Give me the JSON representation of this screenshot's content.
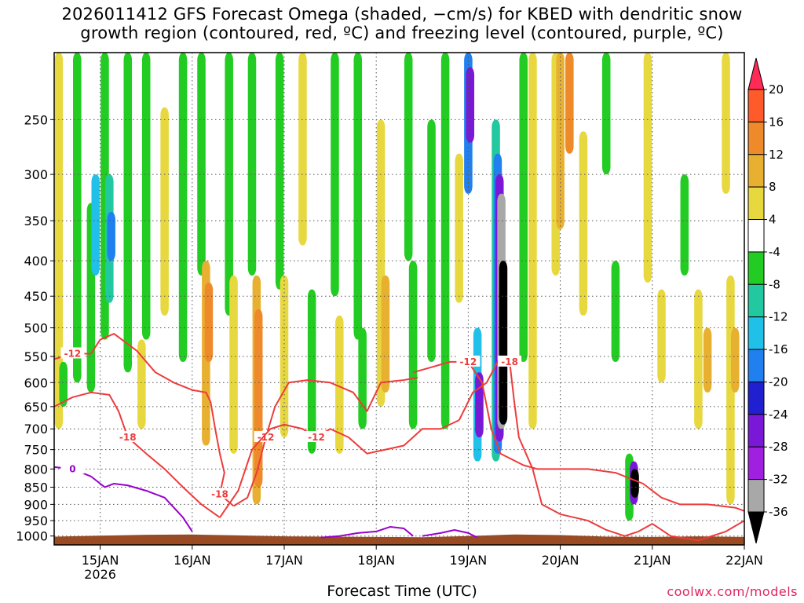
{
  "title": {
    "line1": "2026011412 GFS Forecast Omega (shaded, −cm/s) for KBED with dendritic snow",
    "line2": "growth region (contoured, red, ºC) and freezing level (contoured, purple, ºC)"
  },
  "x_axis_title": "Forecast Time (UTC)",
  "credit": "coolwx.com/models",
  "colors": {
    "terrain": "#9c4a22",
    "dendritic_contour": "#ee3b3b",
    "freezing_contour": "#9a00cc",
    "grid": "#555555"
  },
  "chart_data": {
    "type": "heatmap",
    "title": "2026011412 GFS Forecast Omega (shaded, −cm/s) for KBED with dendritic snow growth region (contoured, red, ºC) and freezing level (contoured, purple, ºC)",
    "xlabel": "Forecast Time (UTC)",
    "ylabel": "",
    "y_scale": "log-pressure",
    "y_inverted": true,
    "x_ticks": [
      {
        "label": "15JAN",
        "sub": "2026",
        "day": 15
      },
      {
        "label": "16JAN",
        "sub": "",
        "day": 16
      },
      {
        "label": "17JAN",
        "sub": "",
        "day": 17
      },
      {
        "label": "18JAN",
        "sub": "",
        "day": 18
      },
      {
        "label": "19JAN",
        "sub": "",
        "day": 19
      },
      {
        "label": "20JAN",
        "sub": "",
        "day": 20
      },
      {
        "label": "21JAN",
        "sub": "",
        "day": 21
      },
      {
        "label": "22JAN",
        "sub": "",
        "day": 22
      }
    ],
    "xlim_days": [
      14.5,
      22
    ],
    "y_ticks": [
      250,
      300,
      350,
      400,
      450,
      500,
      550,
      600,
      650,
      700,
      750,
      800,
      850,
      900,
      950,
      1000
    ],
    "ylim": [
      200,
      1030
    ],
    "colorbar": {
      "levels": [
        "20",
        "16",
        "12",
        "8",
        "4",
        "-4",
        "-8",
        "-12",
        "-16",
        "-20",
        "-24",
        "-28",
        "-32",
        "-36"
      ],
      "colors": [
        "#ff2a55",
        "#ff5a2a",
        "#ee8a2a",
        "#e8b030",
        "#e8d840",
        "#ffffff",
        "#22cc22",
        "#22c8a0",
        "#20c0e8",
        "#2080f0",
        "#2020d0",
        "#7a18d8",
        "#a020e0",
        "#a8a8a8",
        "#000000"
      ]
    },
    "omega_cells": [
      {
        "day": 14.55,
        "p0": 200,
        "p1": 700,
        "c": "#e8d840"
      },
      {
        "day": 14.6,
        "p0": 560,
        "p1": 650,
        "c": "#22cc22"
      },
      {
        "day": 14.75,
        "p0": 200,
        "p1": 600,
        "c": "#22cc22"
      },
      {
        "day": 14.9,
        "p0": 330,
        "p1": 620,
        "c": "#22cc22"
      },
      {
        "day": 14.95,
        "p0": 300,
        "p1": 420,
        "c": "#20c0e8"
      },
      {
        "day": 15.05,
        "p0": 200,
        "p1": 520,
        "c": "#22cc22"
      },
      {
        "day": 15.1,
        "p0": 300,
        "p1": 460,
        "c": "#22c8a0"
      },
      {
        "day": 15.12,
        "p0": 340,
        "p1": 400,
        "c": "#2080f0"
      },
      {
        "day": 15.3,
        "p0": 200,
        "p1": 580,
        "c": "#22cc22"
      },
      {
        "day": 15.5,
        "p0": 200,
        "p1": 520,
        "c": "#22cc22"
      },
      {
        "day": 15.45,
        "p0": 520,
        "p1": 700,
        "c": "#e8d840"
      },
      {
        "day": 15.7,
        "p0": 240,
        "p1": 480,
        "c": "#e8d840"
      },
      {
        "day": 15.9,
        "p0": 200,
        "p1": 560,
        "c": "#22cc22"
      },
      {
        "day": 16.1,
        "p0": 200,
        "p1": 420,
        "c": "#22cc22"
      },
      {
        "day": 16.15,
        "p0": 400,
        "p1": 740,
        "c": "#e8b030"
      },
      {
        "day": 16.18,
        "p0": 430,
        "p1": 560,
        "c": "#ee8a2a"
      },
      {
        "day": 16.4,
        "p0": 200,
        "p1": 480,
        "c": "#22cc22"
      },
      {
        "day": 16.45,
        "p0": 420,
        "p1": 760,
        "c": "#e8d840"
      },
      {
        "day": 16.65,
        "p0": 200,
        "p1": 420,
        "c": "#22cc22"
      },
      {
        "day": 16.7,
        "p0": 420,
        "p1": 900,
        "c": "#e8b030"
      },
      {
        "day": 16.72,
        "p0": 470,
        "p1": 850,
        "c": "#ee8a2a"
      },
      {
        "day": 16.95,
        "p0": 200,
        "p1": 440,
        "c": "#22cc22"
      },
      {
        "day": 17.0,
        "p0": 420,
        "p1": 720,
        "c": "#e8d840"
      },
      {
        "day": 17.2,
        "p0": 200,
        "p1": 380,
        "c": "#e8d840"
      },
      {
        "day": 17.3,
        "p0": 440,
        "p1": 760,
        "c": "#22cc22"
      },
      {
        "day": 17.55,
        "p0": 200,
        "p1": 450,
        "c": "#22cc22"
      },
      {
        "day": 17.6,
        "p0": 480,
        "p1": 760,
        "c": "#e8d840"
      },
      {
        "day": 17.8,
        "p0": 200,
        "p1": 520,
        "c": "#22cc22"
      },
      {
        "day": 17.85,
        "p0": 500,
        "p1": 700,
        "c": "#22cc22"
      },
      {
        "day": 18.05,
        "p0": 250,
        "p1": 650,
        "c": "#e8d840"
      },
      {
        "day": 18.1,
        "p0": 420,
        "p1": 620,
        "c": "#e8b030"
      },
      {
        "day": 18.35,
        "p0": 200,
        "p1": 400,
        "c": "#22cc22"
      },
      {
        "day": 18.4,
        "p0": 400,
        "p1": 700,
        "c": "#22cc22"
      },
      {
        "day": 18.6,
        "p0": 250,
        "p1": 560,
        "c": "#22cc22"
      },
      {
        "day": 18.75,
        "p0": 200,
        "p1": 700,
        "c": "#22cc22"
      },
      {
        "day": 18.9,
        "p0": 280,
        "p1": 460,
        "c": "#e8d840"
      },
      {
        "day": 19.0,
        "p0": 200,
        "p1": 320,
        "c": "#2080f0"
      },
      {
        "day": 19.02,
        "p0": 210,
        "p1": 270,
        "c": "#7a18d8"
      },
      {
        "day": 19.1,
        "p0": 500,
        "p1": 780,
        "c": "#20c0e8"
      },
      {
        "day": 19.12,
        "p0": 580,
        "p1": 720,
        "c": "#7a18d8"
      },
      {
        "day": 19.3,
        "p0": 250,
        "p1": 780,
        "c": "#22c8a0"
      },
      {
        "day": 19.32,
        "p0": 280,
        "p1": 760,
        "c": "#2080f0"
      },
      {
        "day": 19.34,
        "p0": 300,
        "p1": 730,
        "c": "#7a18d8"
      },
      {
        "day": 19.36,
        "p0": 320,
        "p1": 700,
        "c": "#a8a8a8"
      },
      {
        "day": 19.38,
        "p0": 400,
        "p1": 690,
        "c": "#000000"
      },
      {
        "day": 19.6,
        "p0": 200,
        "p1": 560,
        "c": "#22cc22"
      },
      {
        "day": 19.7,
        "p0": 200,
        "p1": 700,
        "c": "#e8d840"
      },
      {
        "day": 19.95,
        "p0": 200,
        "p1": 420,
        "c": "#e8d840"
      },
      {
        "day": 20.0,
        "p0": 200,
        "p1": 360,
        "c": "#e8b030"
      },
      {
        "day": 20.1,
        "p0": 200,
        "p1": 280,
        "c": "#ee8a2a"
      },
      {
        "day": 20.25,
        "p0": 260,
        "p1": 480,
        "c": "#e8d840"
      },
      {
        "day": 20.5,
        "p0": 200,
        "p1": 300,
        "c": "#22cc22"
      },
      {
        "day": 20.6,
        "p0": 400,
        "p1": 560,
        "c": "#22cc22"
      },
      {
        "day": 20.75,
        "p0": 760,
        "p1": 950,
        "c": "#22cc22"
      },
      {
        "day": 20.8,
        "p0": 780,
        "p1": 900,
        "c": "#7a18d8"
      },
      {
        "day": 20.81,
        "p0": 800,
        "p1": 880,
        "c": "#000000"
      },
      {
        "day": 20.95,
        "p0": 200,
        "p1": 430,
        "c": "#e8d840"
      },
      {
        "day": 21.1,
        "p0": 440,
        "p1": 600,
        "c": "#e8d840"
      },
      {
        "day": 21.35,
        "p0": 300,
        "p1": 420,
        "c": "#22cc22"
      },
      {
        "day": 21.5,
        "p0": 440,
        "p1": 700,
        "c": "#e8d840"
      },
      {
        "day": 21.6,
        "p0": 500,
        "p1": 620,
        "c": "#e8b030"
      },
      {
        "day": 21.8,
        "p0": 200,
        "p1": 320,
        "c": "#e8d840"
      },
      {
        "day": 21.85,
        "p0": 420,
        "p1": 900,
        "c": "#e8d840"
      },
      {
        "day": 21.9,
        "p0": 500,
        "p1": 620,
        "c": "#e8b030"
      }
    ],
    "dendritic_lines": [
      {
        "label": "-12",
        "label_at": 1,
        "points": [
          [
            14.5,
            555
          ],
          [
            14.7,
            545
          ],
          [
            14.9,
            545
          ],
          [
            15.0,
            520
          ],
          [
            15.15,
            510
          ],
          [
            15.4,
            540
          ],
          [
            15.6,
            580
          ],
          [
            15.8,
            600
          ],
          [
            16.0,
            615
          ]
        ]
      },
      {
        "label": "-18",
        "label_at": 6,
        "points": [
          [
            16.0,
            615
          ],
          [
            16.15,
            620
          ],
          [
            16.2,
            640
          ],
          [
            16.25,
            700
          ],
          [
            16.3,
            760
          ],
          [
            16.35,
            810
          ],
          [
            16.3,
            870
          ],
          [
            16.45,
            905
          ]
        ]
      },
      {
        "label": "-12",
        "label_at": 3,
        "points": [
          [
            16.45,
            905
          ],
          [
            16.6,
            880
          ],
          [
            16.7,
            810
          ],
          [
            16.8,
            720
          ],
          [
            16.9,
            650
          ],
          [
            17.05,
            600
          ],
          [
            17.25,
            595
          ],
          [
            17.5,
            600
          ],
          [
            17.75,
            620
          ],
          [
            17.9,
            660
          ],
          [
            18.05,
            600
          ],
          [
            18.3,
            595
          ],
          [
            18.45,
            590
          ]
        ]
      },
      {
        "label": "-18",
        "label_at": 5,
        "points": [
          [
            14.5,
            650
          ],
          [
            14.7,
            630
          ],
          [
            14.9,
            620
          ],
          [
            15.1,
            625
          ],
          [
            15.2,
            660
          ],
          [
            15.3,
            720
          ],
          [
            15.5,
            760
          ],
          [
            15.7,
            800
          ],
          [
            15.9,
            850
          ],
          [
            16.1,
            900
          ],
          [
            16.3,
            940
          ]
        ]
      },
      {
        "label": "-12",
        "label_at": 6,
        "points": [
          [
            16.3,
            940
          ],
          [
            16.5,
            860
          ],
          [
            16.65,
            750
          ],
          [
            16.85,
            700
          ],
          [
            17.0,
            690
          ],
          [
            17.2,
            700
          ],
          [
            17.35,
            720
          ],
          [
            17.5,
            700
          ],
          [
            17.7,
            720
          ],
          [
            17.9,
            760
          ],
          [
            18.1,
            750
          ],
          [
            18.3,
            740
          ],
          [
            18.5,
            700
          ],
          [
            18.7,
            700
          ],
          [
            18.9,
            680
          ]
        ]
      },
      {
        "label": "-18",
        "label_at": 4,
        "points": [
          [
            18.9,
            680
          ],
          [
            19.05,
            620
          ],
          [
            19.2,
            600
          ],
          [
            19.35,
            550
          ],
          [
            19.45,
            560
          ],
          [
            19.5,
            640
          ],
          [
            19.55,
            720
          ],
          [
            19.7,
            800
          ],
          [
            19.8,
            900
          ],
          [
            20.0,
            930
          ],
          [
            20.3,
            950
          ],
          [
            20.5,
            980
          ],
          [
            20.7,
            1000
          ],
          [
            20.85,
            985
          ],
          [
            21.0,
            960
          ],
          [
            21.2,
            1000
          ],
          [
            21.5,
            1015
          ],
          [
            21.8,
            985
          ],
          [
            22.0,
            950
          ]
        ]
      },
      {
        "label": "-12",
        "label_at": 3,
        "points": [
          [
            18.4,
            580
          ],
          [
            18.6,
            570
          ],
          [
            18.8,
            560
          ],
          [
            19.0,
            560
          ],
          [
            19.15,
            600
          ],
          [
            19.25,
            700
          ],
          [
            19.35,
            760
          ],
          [
            19.6,
            790
          ],
          [
            19.75,
            800
          ],
          [
            20.0,
            800
          ],
          [
            20.3,
            800
          ],
          [
            20.6,
            810
          ],
          [
            20.9,
            840
          ],
          [
            21.1,
            880
          ],
          [
            21.3,
            900
          ],
          [
            21.6,
            900
          ],
          [
            21.9,
            910
          ],
          [
            22.0,
            920
          ]
        ]
      }
    ],
    "freezing_lines": [
      {
        "label": "0",
        "points": [
          [
            14.5,
            795
          ],
          [
            14.7,
            800
          ],
          [
            14.9,
            820
          ],
          [
            15.05,
            850
          ],
          [
            15.15,
            840
          ],
          [
            15.3,
            845
          ],
          [
            15.5,
            860
          ],
          [
            15.7,
            880
          ],
          [
            15.9,
            940
          ],
          [
            16.0,
            985
          ]
        ]
      },
      {
        "label": "",
        "points": [
          [
            17.4,
            1005
          ],
          [
            17.6,
            1000
          ],
          [
            17.8,
            990
          ],
          [
            18.0,
            985
          ],
          [
            18.15,
            970
          ],
          [
            18.3,
            975
          ],
          [
            18.4,
            1000
          ]
        ]
      },
      {
        "label": "",
        "points": [
          [
            18.5,
            1000
          ],
          [
            18.7,
            990
          ],
          [
            18.85,
            980
          ],
          [
            19.0,
            990
          ],
          [
            19.1,
            1005
          ]
        ]
      }
    ],
    "terrain_top_hpa": [
      {
        "day": 14.5,
        "p": 1002
      },
      {
        "day": 15.0,
        "p": 999
      },
      {
        "day": 15.5,
        "p": 996
      },
      {
        "day": 16.0,
        "p": 995
      },
      {
        "day": 16.5,
        "p": 998
      },
      {
        "day": 17.0,
        "p": 1001
      },
      {
        "day": 17.5,
        "p": 1002
      },
      {
        "day": 18.0,
        "p": 1003
      },
      {
        "day": 18.5,
        "p": 1004
      },
      {
        "day": 19.0,
        "p": 1000
      },
      {
        "day": 19.5,
        "p": 995
      },
      {
        "day": 20.0,
        "p": 997
      },
      {
        "day": 20.5,
        "p": 1002
      },
      {
        "day": 21.0,
        "p": 1003
      },
      {
        "day": 21.5,
        "p": 1001
      },
      {
        "day": 22.0,
        "p": 1003
      }
    ]
  }
}
